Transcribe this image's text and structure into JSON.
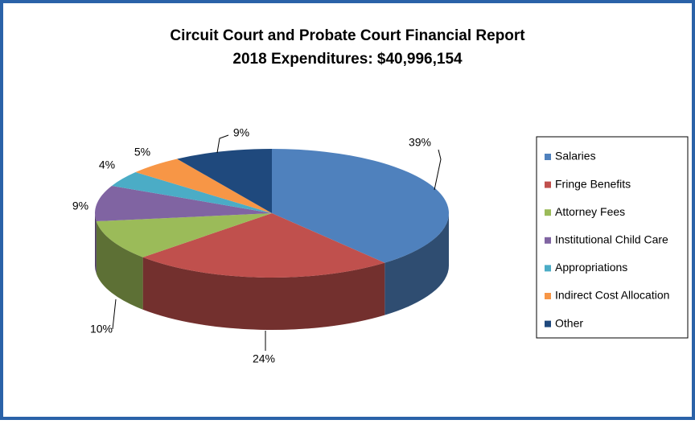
{
  "chart_data": {
    "type": "pie3d",
    "title": "Circuit Court and Probate Court Financial Report",
    "subtitle": "2018 Expenditures:  $40,996,154",
    "categories": [
      "Salaries",
      "Fringe Benefits",
      "Attorney Fees",
      "Institutional Child Care",
      "Appropriations",
      "Indirect Cost Allocation",
      "Other"
    ],
    "values": [
      39,
      24,
      10,
      9,
      4,
      5,
      9
    ],
    "value_labels": [
      "39%",
      "24%",
      "10%",
      "9%",
      "4%",
      "5%",
      "9%"
    ],
    "colors": [
      "#4f81bd",
      "#c0504d",
      "#9bbb59",
      "#8064a2",
      "#4bacc6",
      "#f79646",
      "#1f497d"
    ],
    "legend": "right"
  }
}
